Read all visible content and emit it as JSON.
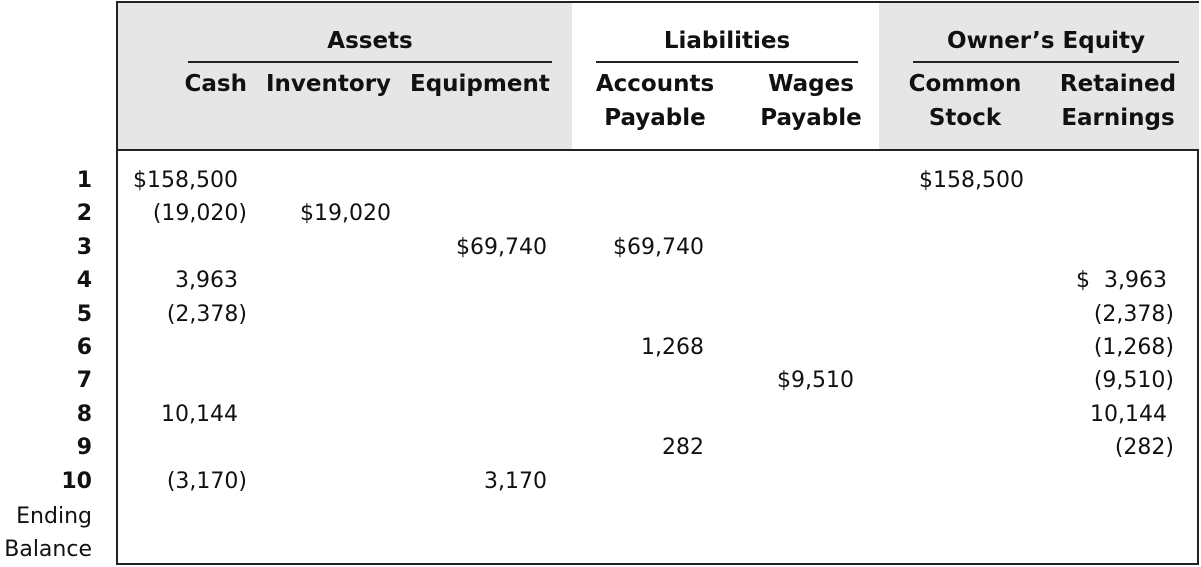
{
  "groups": {
    "assets": "Assets",
    "liabilities": "Liabilities",
    "equity": "Owner’s Equity"
  },
  "columns": {
    "cash": "Cash",
    "inventory": "Inventory",
    "equipment": "Equipment",
    "accounts_payable_1": "Accounts",
    "accounts_payable_2": "Payable",
    "wages_payable_1": "Wages",
    "wages_payable_2": "Payable",
    "common_stock_1": "Common",
    "common_stock_2": "Stock",
    "retained_earnings_1": "Retained",
    "retained_earnings_2": "Earnings"
  },
  "rows": [
    {
      "label": "1",
      "cash": "$158,500",
      "inventory": "",
      "equipment": "",
      "accounts_payable": "",
      "wages_payable": "",
      "common_stock": "$158,500",
      "retained_earnings": ""
    },
    {
      "label": "2",
      "cash": "(19,020)",
      "inventory": "$19,020",
      "equipment": "",
      "accounts_payable": "",
      "wages_payable": "",
      "common_stock": "",
      "retained_earnings": ""
    },
    {
      "label": "3",
      "cash": "",
      "inventory": "",
      "equipment": "$69,740",
      "accounts_payable": "$69,740",
      "wages_payable": "",
      "common_stock": "",
      "retained_earnings": ""
    },
    {
      "label": "4",
      "cash": "3,963",
      "inventory": "",
      "equipment": "",
      "accounts_payable": "",
      "wages_payable": "",
      "common_stock": "",
      "retained_earnings": "$  3,963"
    },
    {
      "label": "5",
      "cash": "(2,378)",
      "inventory": "",
      "equipment": "",
      "accounts_payable": "",
      "wages_payable": "",
      "common_stock": "",
      "retained_earnings": "(2,378)"
    },
    {
      "label": "6",
      "cash": "",
      "inventory": "",
      "equipment": "",
      "accounts_payable": "1,268",
      "wages_payable": "",
      "common_stock": "",
      "retained_earnings": "(1,268)"
    },
    {
      "label": "7",
      "cash": "",
      "inventory": "",
      "equipment": "",
      "accounts_payable": "",
      "wages_payable": "$9,510",
      "common_stock": "",
      "retained_earnings": "(9,510)"
    },
    {
      "label": "8",
      "cash": "10,144",
      "inventory": "",
      "equipment": "",
      "accounts_payable": "",
      "wages_payable": "",
      "common_stock": "",
      "retained_earnings": "10,144"
    },
    {
      "label": "9",
      "cash": "",
      "inventory": "",
      "equipment": "",
      "accounts_payable": "282",
      "wages_payable": "",
      "common_stock": "",
      "retained_earnings": "(282)"
    },
    {
      "label": "10",
      "cash": "(3,170)",
      "inventory": "",
      "equipment": "3,170",
      "accounts_payable": "",
      "wages_payable": "",
      "common_stock": "",
      "retained_earnings": ""
    }
  ],
  "ending": {
    "line1": "Ending",
    "line2": "Balance"
  },
  "colors": {
    "header_gray": "#e6e6e6",
    "rule": "#222222"
  }
}
